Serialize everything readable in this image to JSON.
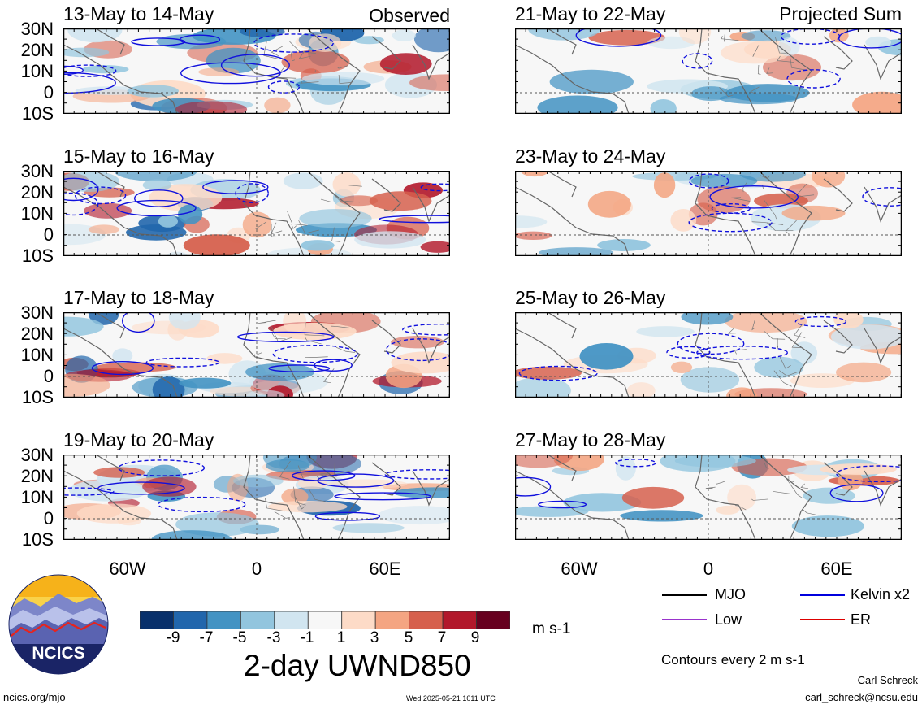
{
  "header": {
    "left_tag": "Observed",
    "right_tag": "Projected Sum"
  },
  "panels": {
    "left": [
      {
        "title": "13-May to 14-May"
      },
      {
        "title": "15-May to 16-May"
      },
      {
        "title": "17-May to 18-May"
      },
      {
        "title": "19-May to 20-May"
      }
    ],
    "right": [
      {
        "title": "21-May to 22-May"
      },
      {
        "title": "23-May to 24-May"
      },
      {
        "title": "25-May to 26-May"
      },
      {
        "title": "27-May to 28-May"
      }
    ]
  },
  "axes": {
    "lat_labels": [
      "30N",
      "20N",
      "10N",
      "0",
      "10S"
    ],
    "lon_labels": [
      "60W",
      "0",
      "60E"
    ]
  },
  "colorbar": {
    "labels": [
      "-9",
      "-7",
      "-5",
      "-3",
      "-1",
      "1",
      "3",
      "5",
      "7",
      "9"
    ],
    "colors": [
      "#08306b",
      "#2166ac",
      "#4393c3",
      "#92c5de",
      "#d1e5f0",
      "#f7f7f7",
      "#fddbc7",
      "#f4a582",
      "#d6604d",
      "#b2182b",
      "#67001f"
    ],
    "units": "m s-1",
    "title": "2-day UWND850"
  },
  "legend": {
    "items": [
      {
        "label": "MJO",
        "color": "#000000"
      },
      {
        "label": "Kelvin x2",
        "color": "#0000dd"
      },
      {
        "label": "Low",
        "color": "#9933cc"
      },
      {
        "label": "ER",
        "color": "#dd0000"
      }
    ],
    "contour_note": "Contours every 2 m s-1"
  },
  "footer": {
    "logo_text": "NCICS",
    "url": "ncics.org/mjo",
    "timestamp": "Wed 2025-05-21 1011 UTC",
    "author": "Carl Schreck",
    "email": "carl_schreck@ncsu.edu"
  }
}
